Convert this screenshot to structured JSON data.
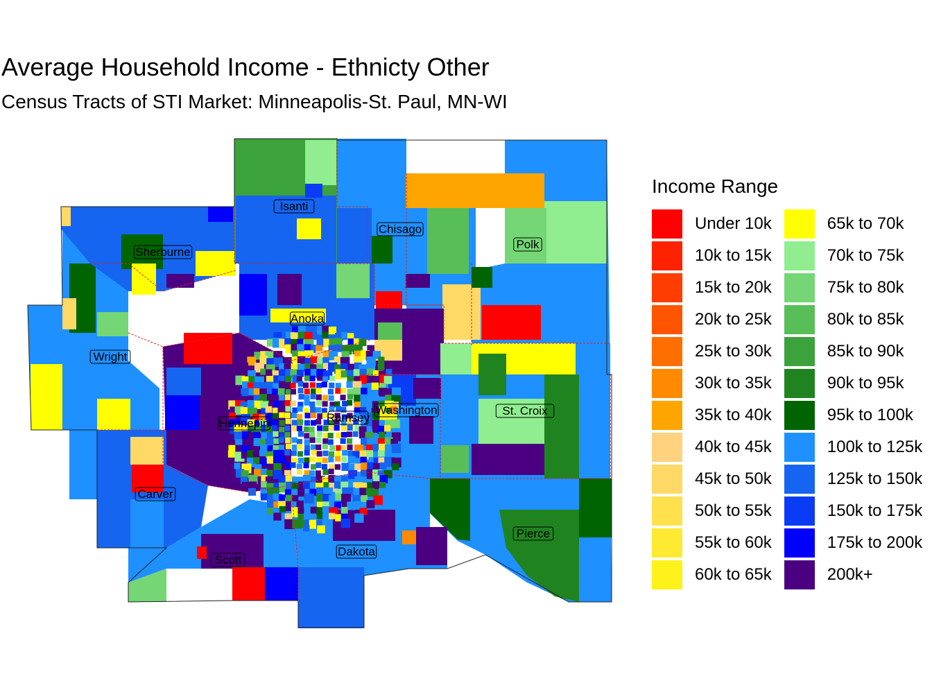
{
  "title": "Average Household Income - Ethnicty Other",
  "subtitle": "Census Tracts of STI Market: Minneapolis-St. Paul, MN-WI",
  "legend": {
    "title": "Income Range",
    "items": [
      {
        "label": "Under 10k",
        "color": "#FF0000"
      },
      {
        "label": "10k to 15k",
        "color": "#FF2200"
      },
      {
        "label": "15k to 20k",
        "color": "#FF3D00"
      },
      {
        "label": "20k to 25k",
        "color": "#FF5500"
      },
      {
        "label": "25k to 30k",
        "color": "#FF6E00"
      },
      {
        "label": "30k to 35k",
        "color": "#FF8A00"
      },
      {
        "label": "35k to 40k",
        "color": "#FFA500"
      },
      {
        "label": "40k to 45k",
        "color": "#FFD27F"
      },
      {
        "label": "45k to 50k",
        "color": "#FFD966"
      },
      {
        "label": "50k to 55k",
        "color": "#FFE14D"
      },
      {
        "label": "55k to 60k",
        "color": "#FFEA33"
      },
      {
        "label": "60k to 65k",
        "color": "#FFF21A"
      },
      {
        "label": "65k to 70k",
        "color": "#FFFF00"
      },
      {
        "label": "70k to 75k",
        "color": "#90EE90"
      },
      {
        "label": "75k to 80k",
        "color": "#74D674"
      },
      {
        "label": "80k to 85k",
        "color": "#58BE58"
      },
      {
        "label": "85k to 90k",
        "color": "#3CA23C"
      },
      {
        "label": "90k to 95k",
        "color": "#1F841F"
      },
      {
        "label": "95k to 100k",
        "color": "#006400"
      },
      {
        "label": "100k to 125k",
        "color": "#1E90FF"
      },
      {
        "label": "125k to 150k",
        "color": "#1565F0"
      },
      {
        "label": "150k to 175k",
        "color": "#0A3CF5"
      },
      {
        "label": "175k to 200k",
        "color": "#0000FF"
      },
      {
        "label": "200k+",
        "color": "#4B0082"
      }
    ]
  },
  "counties": [
    {
      "name": "Isanti"
    },
    {
      "name": "Chisago"
    },
    {
      "name": "Polk"
    },
    {
      "name": "Sherburne"
    },
    {
      "name": "Anoka"
    },
    {
      "name": "Wright"
    },
    {
      "name": "Washington"
    },
    {
      "name": "St. Croix"
    },
    {
      "name": "Hennepin"
    },
    {
      "name": "Ramsey"
    },
    {
      "name": "Carver"
    },
    {
      "name": "Pierce"
    },
    {
      "name": "Dakota"
    },
    {
      "name": "Scott"
    }
  ]
}
